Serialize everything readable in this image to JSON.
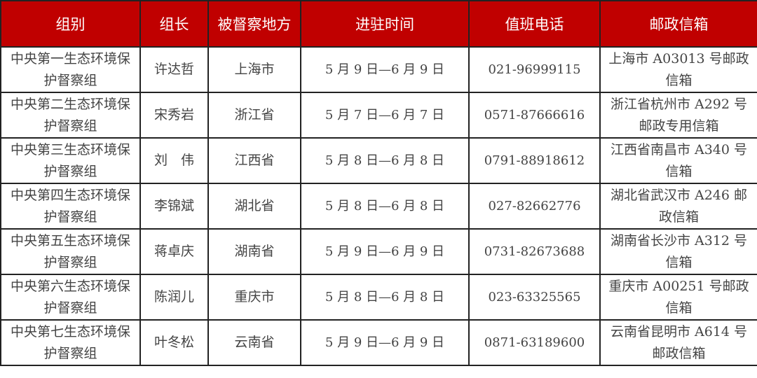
{
  "table": {
    "header_color": "#c00000",
    "headers": [
      "组别",
      "组长",
      "被督察地方",
      "进驻时间",
      "值班电话",
      "邮政信箱"
    ],
    "rows": [
      [
        "中央第一生态环境保护督察组",
        "许达哲",
        "上海市",
        "5 月 9 日—6 月 9 日",
        "021-96999115",
        "上海市 A03013 号邮政信箱"
      ],
      [
        "中央第二生态环境保护督察组",
        "宋秀岩",
        "浙江省",
        "5 月 7 日—6 月 7 日",
        "0571-87666616",
        "浙江省杭州市 A292 号邮政专用信箱"
      ],
      [
        "中央第三生态环境保护督察组",
        "刘　伟",
        "江西省",
        "5 月 8 日—6 月 8 日",
        "0791-88918612",
        "江西省南昌市 A340 号信箱"
      ],
      [
        "中央第四生态环境保护督察组",
        "李锦斌",
        "湖北省",
        "5 月 8 日—6 月 8 日",
        "027-82662776",
        "湖北省武汉市 A246 邮政信箱"
      ],
      [
        "中央第五生态环境保护督察组",
        "蒋卓庆",
        "湖南省",
        "5 月 9 日—6 月 9 日",
        "0731-82673688",
        "湖南省长沙市 A312 号信箱"
      ],
      [
        "中央第六生态环境保护督察组",
        "陈润儿",
        "重庆市",
        "5 月 8 日—6 月 8 日",
        "023-63325565",
        "重庆市 A00251 号邮政信箱"
      ],
      [
        "中央第七生态环境保护督察组",
        "叶冬松",
        "云南省",
        "5 月 9 日—6 月 9 日",
        "0871-63189600",
        "云南省昆明市 A614 号邮政信箱"
      ]
    ]
  }
}
